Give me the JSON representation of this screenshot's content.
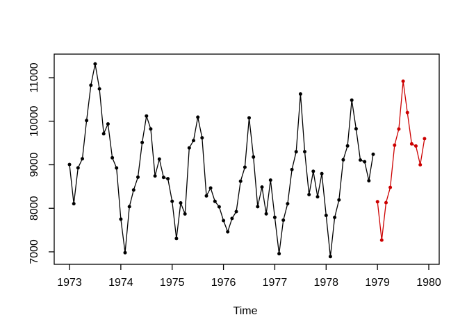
{
  "figure": {
    "background": "#ffffff"
  },
  "chart_data": {
    "type": "line",
    "title": "",
    "xlabel": "Time",
    "ylabel": "",
    "x_ticks": [
      1973,
      1974,
      1975,
      1976,
      1977,
      1978,
      1979,
      1980
    ],
    "y_ticks": [
      7000,
      8000,
      9000,
      10000,
      11000
    ],
    "xlim": [
      1972.702,
      1980.203
    ],
    "ylim": [
      6713,
      11542
    ],
    "grid": false,
    "legend": "none",
    "marker": "filled-circle",
    "line_style": "overplotted-points",
    "series": [
      {
        "name": "observed-monthly-1973-1978",
        "color": "#000000",
        "start_time": 1973.0,
        "frequency": 12,
        "values": [
          9007,
          8106,
          8928,
          9137,
          10017,
          10826,
          11317,
          10744,
          9713,
          9938,
          9161,
          8927,
          7750,
          6981,
          8038,
          8422,
          8714,
          9512,
          10120,
          9823,
          8743,
          9129,
          8710,
          8680,
          8162,
          7306,
          8124,
          7870,
          9387,
          9556,
          10093,
          9620,
          8285,
          8466,
          8160,
          8034,
          7717,
          7461,
          7767,
          7925,
          8623,
          8945,
          10078,
          9179,
          8037,
          8488,
          7874,
          8647,
          7792,
          6957,
          7726,
          8106,
          8890,
          9299,
          10625,
          9302,
          8314,
          8850,
          8265,
          8796,
          7836,
          6892,
          7791,
          8192,
          9115,
          9434,
          10484,
          9827,
          9110,
          9070,
          8633,
          9240
        ]
      },
      {
        "name": "forecast-monthly-1979",
        "color": "#cc0000",
        "start_time": 1979.0,
        "frequency": 12,
        "values": [
          8150,
          7270,
          8130,
          8480,
          9450,
          9820,
          10920,
          10200,
          9480,
          9430,
          9000,
          9600
        ]
      }
    ]
  }
}
